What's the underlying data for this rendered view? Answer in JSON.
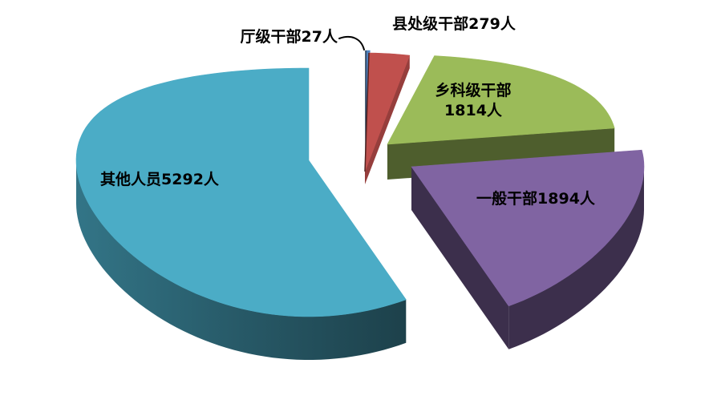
{
  "chart_data": {
    "type": "pie",
    "style": "3d-exploded",
    "title": "",
    "legend": "none",
    "background_color": "#FFFFFF",
    "label_color": "#000000",
    "leader_line_color": "#000000",
    "start_angle_deg": -90,
    "direction": "clockwise",
    "unit": "人",
    "slices": [
      {
        "name": "厅级干部",
        "value": 27,
        "label": "厅级干部27人",
        "label_lines": [
          "厅级干部27人"
        ],
        "color": "#4F81BD"
      },
      {
        "name": "县处级干部",
        "value": 279,
        "label": "县处级干部279人",
        "label_lines": [
          "县处级干部279人"
        ],
        "color": "#C0504D"
      },
      {
        "name": "乡科级干部",
        "value": 1814,
        "label": "乡科级干部1814人",
        "label_lines": [
          "乡科级干部",
          "1814人"
        ],
        "color": "#9BBB59"
      },
      {
        "name": "一般干部",
        "value": 1894,
        "label": "一般干部1894人",
        "label_lines": [
          "一般干部1894人"
        ],
        "color": "#8064A2"
      },
      {
        "name": "其他人员",
        "value": 5292,
        "label": "其他人员5292人",
        "label_lines": [
          "其他人员5292人"
        ],
        "color": "#4BACC6"
      }
    ]
  }
}
